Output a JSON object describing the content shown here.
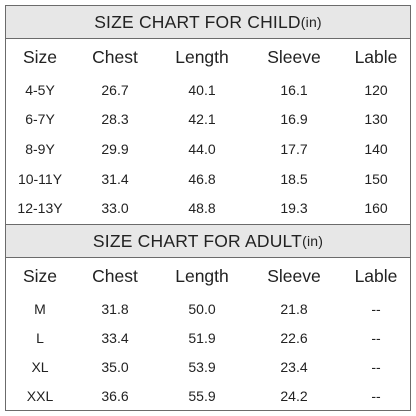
{
  "child": {
    "title": "SIZE CHART FOR CHILD",
    "unit": "(in)",
    "headers": [
      "Size",
      "Chest",
      "Length",
      "Sleeve",
      "Lable"
    ],
    "rows": [
      [
        "4-5Y",
        "26.7",
        "40.1",
        "16.1",
        "120"
      ],
      [
        "6-7Y",
        "28.3",
        "42.1",
        "16.9",
        "130"
      ],
      [
        "8-9Y",
        "29.9",
        "44.0",
        "17.7",
        "140"
      ],
      [
        "10-11Y",
        "31.4",
        "46.8",
        "18.5",
        "150"
      ],
      [
        "12-13Y",
        "33.0",
        "48.8",
        "19.3",
        "160"
      ]
    ]
  },
  "adult": {
    "title": "SIZE CHART FOR ADULT",
    "unit": "(in)",
    "headers": [
      "Size",
      "Chest",
      "Length",
      "Sleeve",
      "Lable"
    ],
    "rows": [
      [
        "M",
        "31.8",
        "50.0",
        "21.8",
        "--"
      ],
      [
        "L",
        "33.4",
        "51.9",
        "22.6",
        "--"
      ],
      [
        "XL",
        "35.0",
        "53.9",
        "23.4",
        "--"
      ],
      [
        "XXL",
        "36.6",
        "55.9",
        "24.2",
        "--"
      ]
    ]
  },
  "colors": {
    "title_background": "#e7e7e7",
    "border": "#6b6b6b",
    "text": "#222222"
  }
}
